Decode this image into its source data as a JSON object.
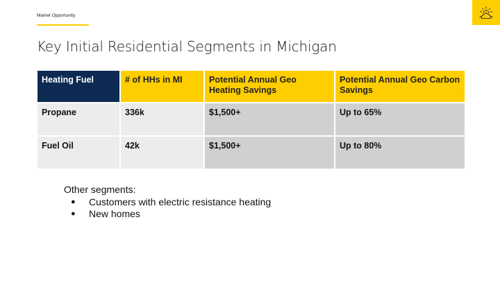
{
  "header": {
    "section_label": "Market Opportunity",
    "logo_icon": "house-sun-icon",
    "accent_color": "#ffce00"
  },
  "title": "Key Initial Residential Segments in Michigan",
  "table": {
    "headers": [
      "Heating Fuel",
      "# of HHs in MI",
      "Potential Annual Geo Heating Savings",
      "Potential Annual Geo Carbon Savings"
    ],
    "header_color_first": "#0d2b52",
    "header_color_rest": "#ffce00",
    "rows": [
      [
        "Propane",
        "336k",
        "$1,500+",
        "Up to 65%"
      ],
      [
        "Fuel Oil",
        "42k",
        "$1,500+",
        "Up to 80%"
      ]
    ]
  },
  "other_segments": {
    "heading": "Other segments:",
    "items": [
      "Customers with electric resistance heating",
      "New homes"
    ]
  }
}
